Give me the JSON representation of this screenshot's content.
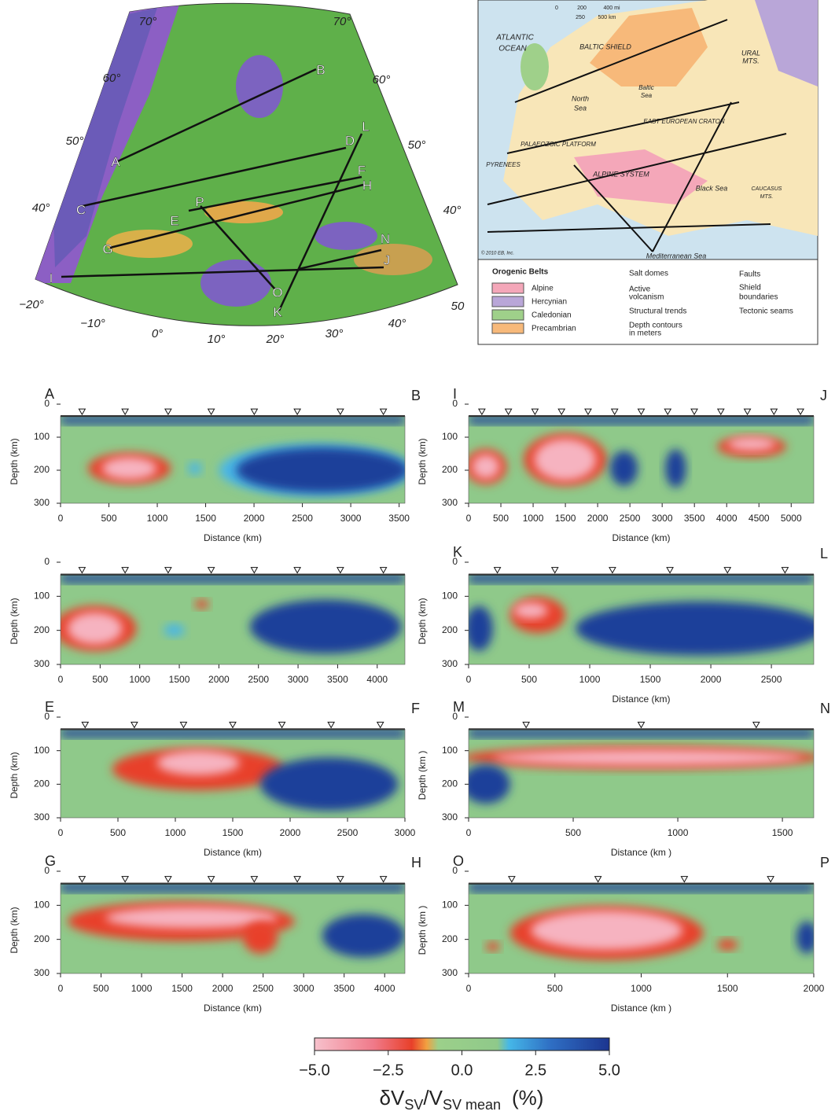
{
  "map_left": {
    "labels": [
      "70°",
      "60°",
      "50°",
      "40°",
      "70°",
      "60°",
      "50°",
      "40°",
      "−20°",
      "−10°",
      "0°",
      "10°",
      "20°",
      "30°",
      "40°",
      "50"
    ],
    "profile_letters": [
      "A",
      "B",
      "L",
      "D",
      "C",
      "F",
      "H",
      "P",
      "E",
      "G",
      "N",
      "J",
      "I",
      "O",
      "K"
    ]
  },
  "map_right": {
    "labels": [
      "ATLANTIC",
      "OCEAN",
      "North",
      "Sea",
      "BALTIC SHIELD",
      "Baltic",
      "Sea",
      "URAL",
      "MTS.",
      "EAST EUROPEAN CRATON",
      "PALAEOZOIC PLATFORM",
      "PYRENEES",
      "ALPINE SYSTEM",
      "CAUCASUS",
      "MTS.",
      "Black Sea",
      "Mediterranean Sea",
      "© 2010 EB, Inc."
    ],
    "scale": [
      "0",
      "200",
      "400 mi",
      "250",
      "500 km"
    ],
    "legend_title": "Orogenic Belts",
    "legend": [
      {
        "label": "Alpine",
        "color": "#f4a7b9"
      },
      {
        "label": "Hercynian",
        "color": "#b9a6d8"
      },
      {
        "label": "Caledonian",
        "color": "#9fd08a"
      },
      {
        "label": "Precambrian",
        "color": "#f7b97a"
      }
    ],
    "legend_symbols": [
      "Salt domes",
      "Active",
      "volcanism",
      "Structural trends",
      "Depth contours",
      "in meters",
      "Faults",
      "Shield",
      "boundaries",
      "Tectonic seams"
    ]
  },
  "chart_data": [
    {
      "type": "heatmap",
      "left_label": "A",
      "right_label": "B",
      "xlim": [
        0,
        3560
      ],
      "xticks": [
        0,
        500,
        1000,
        1500,
        2000,
        2500,
        3000,
        3500
      ],
      "ylim": [
        300,
        0
      ],
      "yticks": [
        0,
        100,
        200,
        300
      ],
      "x_label": "Distance (km)",
      "y_label": "Depth (km)"
    },
    {
      "type": "heatmap",
      "left_label": "I",
      "right_label": "J",
      "xlim": [
        0,
        5350
      ],
      "xticks": [
        0,
        500,
        1000,
        1500,
        2000,
        2500,
        3000,
        3500,
        4000,
        4500,
        5000
      ],
      "ylim": [
        300,
        0
      ],
      "yticks": [
        0,
        100,
        200,
        300
      ],
      "x_label": "Distance (km)",
      "y_label": "Depth (km)"
    },
    {
      "type": "heatmap",
      "xlim": [
        0,
        4350
      ],
      "xticks": [
        0,
        500,
        1000,
        1500,
        2000,
        2500,
        3000,
        3500,
        4000
      ],
      "ylim": [
        300,
        0
      ],
      "yticks": [
        0,
        100,
        200,
        300
      ],
      "y_label": "Depth (km)"
    },
    {
      "type": "heatmap",
      "left_label": "K",
      "right_label": "L",
      "xlim": [
        0,
        2850
      ],
      "xticks": [
        0,
        500,
        1000,
        1500,
        2000,
        2500
      ],
      "ylim": [
        300,
        0
      ],
      "yticks": [
        0,
        100,
        200,
        300
      ],
      "x_label": "Distance (km)",
      "y_label": "Depth (km)"
    },
    {
      "type": "heatmap",
      "left_label": "E",
      "right_label": "F",
      "xlim": [
        0,
        3000
      ],
      "xticks": [
        0,
        500,
        1000,
        1500,
        2000,
        2500,
        3000
      ],
      "ylim": [
        300,
        0
      ],
      "yticks": [
        0,
        100,
        200,
        300
      ],
      "x_label": "Distance (km)",
      "y_label": "Depth (km)"
    },
    {
      "type": "heatmap",
      "left_label": "M",
      "right_label": "N",
      "xlim": [
        0,
        1650
      ],
      "xticks": [
        0,
        500,
        1000,
        1500
      ],
      "ylim": [
        300,
        0
      ],
      "yticks": [
        0,
        100,
        200,
        300
      ],
      "x_label": "Distance (km )",
      "y_label": "Depth (km )"
    },
    {
      "type": "heatmap",
      "left_label": "G",
      "right_label": "H",
      "xlim": [
        0,
        4250
      ],
      "xticks": [
        0,
        500,
        1000,
        1500,
        2000,
        2500,
        3000,
        3500,
        4000
      ],
      "ylim": [
        300,
        0
      ],
      "yticks": [
        0,
        100,
        200,
        300
      ],
      "x_label": "Distance (km)",
      "y_label": "Depth (km)"
    },
    {
      "type": "heatmap",
      "left_label": "O",
      "right_label": "P",
      "xlim": [
        0,
        2000
      ],
      "xticks": [
        0,
        500,
        1000,
        1500,
        2000
      ],
      "ylim": [
        300,
        0
      ],
      "yticks": [
        0,
        100,
        200,
        300
      ],
      "x_label": "Distance (km )",
      "y_label": "Depth (km )"
    }
  ],
  "colorbar": {
    "xlim": [
      -5,
      5
    ],
    "xticks": [
      {
        "value": -5,
        "label": "−5.0"
      },
      {
        "value": -2.5,
        "label": "−2.5"
      },
      {
        "value": 0,
        "label": "0.0"
      },
      {
        "value": 2.5,
        "label": "2.5"
      },
      {
        "value": 5,
        "label": "5.0"
      }
    ],
    "title": [
      "δV",
      "SV",
      "/V",
      "SV mean",
      "(%)"
    ]
  }
}
